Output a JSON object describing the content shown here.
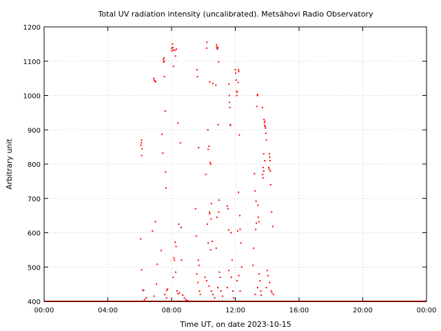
{
  "chart_data": {
    "type": "scatter",
    "title": "Total UV radiation intensity (uncalibrated). Metsähovi Radio Observatory",
    "xlabel": "Time UT, on date 2023-10-15",
    "ylabel": "Arbitrary unit",
    "xlim": [
      0,
      24
    ],
    "ylim": [
      400,
      1200
    ],
    "x_ticks": [
      {
        "value": 0,
        "label": "00:00"
      },
      {
        "value": 4,
        "label": "04:00"
      },
      {
        "value": 8,
        "label": "08:00"
      },
      {
        "value": 12,
        "label": "12:00"
      },
      {
        "value": 16,
        "label": "16:00"
      },
      {
        "value": 20,
        "label": "20:00"
      },
      {
        "value": 24,
        "label": "00:00"
      }
    ],
    "y_ticks": [
      {
        "value": 400,
        "label": "400"
      },
      {
        "value": 500,
        "label": "500"
      },
      {
        "value": 600,
        "label": "600"
      },
      {
        "value": 700,
        "label": "700"
      },
      {
        "value": 800,
        "label": "800"
      },
      {
        "value": 900,
        "label": "900"
      },
      {
        "value": 1000,
        "label": "1000"
      },
      {
        "value": 1100,
        "label": "1100"
      },
      {
        "value": 1200,
        "label": "1200"
      }
    ],
    "grid": true,
    "color": "#ff0000",
    "baseline": {
      "y": 400,
      "x_start": 0,
      "x_end": 24
    },
    "points": [
      [
        6.08,
        855
      ],
      [
        6.1,
        862
      ],
      [
        6.12,
        870
      ],
      [
        6.13,
        825
      ],
      [
        6.15,
        845
      ],
      [
        6.06,
        582
      ],
      [
        6.12,
        492
      ],
      [
        6.2,
        432
      ],
      [
        6.25,
        433
      ],
      [
        6.3,
        405
      ],
      [
        6.4,
        410
      ],
      [
        6.8,
        605
      ],
      [
        6.88,
        1050
      ],
      [
        6.92,
        1045
      ],
      [
        6.95,
        1042
      ],
      [
        7.0,
        1040
      ],
      [
        6.98,
        632
      ],
      [
        7.1,
        508
      ],
      [
        6.9,
        415
      ],
      [
        7.05,
        450
      ],
      [
        7.4,
        887
      ],
      [
        7.45,
        832
      ],
      [
        7.48,
        1105
      ],
      [
        7.5,
        1098
      ],
      [
        7.52,
        1110
      ],
      [
        7.54,
        1100
      ],
      [
        7.55,
        1055
      ],
      [
        7.6,
        955
      ],
      [
        7.62,
        777
      ],
      [
        7.65,
        730
      ],
      [
        7.35,
        548
      ],
      [
        7.7,
        432
      ],
      [
        7.75,
        436
      ],
      [
        7.58,
        420
      ],
      [
        7.68,
        410
      ],
      [
        8.0,
        1138
      ],
      [
        8.02,
        1130
      ],
      [
        8.05,
        1150
      ],
      [
        8.08,
        1140
      ],
      [
        8.1,
        1133
      ],
      [
        8.12,
        1085
      ],
      [
        8.2,
        1132
      ],
      [
        8.25,
        1115
      ],
      [
        8.3,
        1135
      ],
      [
        8.15,
        527
      ],
      [
        8.18,
        520
      ],
      [
        8.22,
        572
      ],
      [
        8.26,
        485
      ],
      [
        8.1,
        470
      ],
      [
        8.28,
        560
      ],
      [
        8.4,
        920
      ],
      [
        8.45,
        625
      ],
      [
        8.55,
        862
      ],
      [
        8.6,
        615
      ],
      [
        8.62,
        520
      ],
      [
        8.35,
        430
      ],
      [
        8.4,
        422
      ],
      [
        8.5,
        425
      ],
      [
        8.7,
        418
      ],
      [
        8.8,
        410
      ],
      [
        8.9,
        405
      ],
      [
        9.0,
        402
      ],
      [
        9.5,
        670
      ],
      [
        9.55,
        590
      ],
      [
        9.6,
        1075
      ],
      [
        9.62,
        1055
      ],
      [
        9.7,
        848
      ],
      [
        9.68,
        520
      ],
      [
        9.72,
        505
      ],
      [
        9.58,
        480
      ],
      [
        9.65,
        455
      ],
      [
        9.75,
        430
      ],
      [
        9.8,
        420
      ],
      [
        10.15,
        770
      ],
      [
        10.2,
        1138
      ],
      [
        10.22,
        1155
      ],
      [
        10.28,
        900
      ],
      [
        10.3,
        843
      ],
      [
        10.35,
        852
      ],
      [
        10.4,
        1040
      ],
      [
        10.42,
        805
      ],
      [
        10.45,
        800
      ],
      [
        10.5,
        685
      ],
      [
        10.38,
        660
      ],
      [
        10.4,
        655
      ],
      [
        10.48,
        640
      ],
      [
        10.25,
        625
      ],
      [
        10.3,
        570
      ],
      [
        10.45,
        550
      ],
      [
        10.55,
        575
      ],
      [
        10.6,
        1035
      ],
      [
        10.1,
        470
      ],
      [
        10.2,
        460
      ],
      [
        10.35,
        445
      ],
      [
        10.5,
        430
      ],
      [
        10.6,
        420
      ],
      [
        10.7,
        410
      ],
      [
        10.78,
        1030
      ],
      [
        10.82,
        1148
      ],
      [
        10.84,
        1142
      ],
      [
        10.86,
        1138
      ],
      [
        10.88,
        1135
      ],
      [
        10.9,
        1140
      ],
      [
        10.95,
        1098
      ],
      [
        10.92,
        915
      ],
      [
        10.98,
        695
      ],
      [
        10.85,
        645
      ],
      [
        10.96,
        660
      ],
      [
        10.8,
        555
      ],
      [
        11.0,
        485
      ],
      [
        11.05,
        470
      ],
      [
        10.9,
        440
      ],
      [
        11.1,
        430
      ],
      [
        11.2,
        415
      ],
      [
        11.5,
        678
      ],
      [
        11.55,
        670
      ],
      [
        11.6,
        1033
      ],
      [
        11.62,
        1000
      ],
      [
        11.64,
        980
      ],
      [
        11.66,
        965
      ],
      [
        11.68,
        915
      ],
      [
        11.7,
        913
      ],
      [
        11.58,
        608
      ],
      [
        11.72,
        600
      ],
      [
        11.8,
        520
      ],
      [
        11.6,
        490
      ],
      [
        11.75,
        470
      ],
      [
        11.5,
        440
      ],
      [
        11.85,
        430
      ],
      [
        11.9,
        410
      ],
      [
        12.0,
        1075
      ],
      [
        12.02,
        1065
      ],
      [
        12.05,
        1045
      ],
      [
        12.08,
        1012
      ],
      [
        12.1,
        1000
      ],
      [
        12.12,
        1010
      ],
      [
        12.2,
        1075
      ],
      [
        12.22,
        1070
      ],
      [
        12.18,
        1038
      ],
      [
        12.25,
        885
      ],
      [
        12.2,
        718
      ],
      [
        12.28,
        650
      ],
      [
        12.3,
        610
      ],
      [
        12.35,
        570
      ],
      [
        12.15,
        605
      ],
      [
        12.4,
        500
      ],
      [
        12.22,
        475
      ],
      [
        12.1,
        460
      ],
      [
        12.3,
        430
      ],
      [
        13.2,
        772
      ],
      [
        13.25,
        722
      ],
      [
        13.3,
        692
      ],
      [
        13.35,
        968
      ],
      [
        13.38,
        1000
      ],
      [
        13.4,
        1003
      ],
      [
        13.42,
        680
      ],
      [
        13.45,
        645
      ],
      [
        13.32,
        628
      ],
      [
        13.48,
        632
      ],
      [
        13.28,
        610
      ],
      [
        13.15,
        555
      ],
      [
        13.1,
        505
      ],
      [
        13.5,
        480
      ],
      [
        13.55,
        460
      ],
      [
        13.4,
        440
      ],
      [
        13.25,
        420
      ],
      [
        13.6,
        430
      ],
      [
        13.62,
        418
      ],
      [
        13.7,
        965
      ],
      [
        13.75,
        790
      ],
      [
        13.78,
        780
      ],
      [
        13.8,
        930
      ],
      [
        13.82,
        920
      ],
      [
        13.84,
        912
      ],
      [
        13.86,
        925
      ],
      [
        13.88,
        910
      ],
      [
        13.9,
        905
      ],
      [
        13.92,
        890
      ],
      [
        13.78,
        830
      ],
      [
        13.85,
        810
      ],
      [
        13.72,
        770
      ],
      [
        13.74,
        760
      ],
      [
        13.95,
        870
      ],
      [
        14.1,
        790
      ],
      [
        14.12,
        785
      ],
      [
        14.14,
        830
      ],
      [
        14.16,
        820
      ],
      [
        14.18,
        810
      ],
      [
        14.2,
        780
      ],
      [
        14.22,
        740
      ],
      [
        14.28,
        660
      ],
      [
        14.35,
        618
      ],
      [
        14.0,
        490
      ],
      [
        14.05,
        475
      ],
      [
        14.15,
        455
      ],
      [
        13.95,
        440
      ],
      [
        14.25,
        430
      ],
      [
        14.3,
        425
      ],
      [
        14.4,
        420
      ]
    ]
  }
}
